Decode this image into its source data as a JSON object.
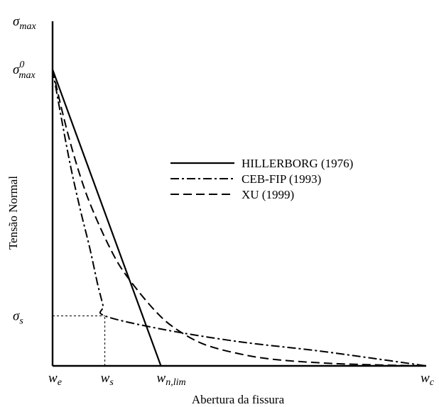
{
  "chart_data": {
    "type": "line",
    "title": "",
    "xlabel": "Abertura da fissura",
    "ylabel": "Tensão Normal",
    "xlim": [
      0,
      100
    ],
    "ylim": [
      0,
      100
    ],
    "grid": false,
    "legend_position": "center-right",
    "y_tick_labels": [
      {
        "value": 100,
        "base": "σ",
        "sub": "max",
        "sup": ""
      },
      {
        "value": 86,
        "base": "σ",
        "sub": "max",
        "sup": "0"
      },
      {
        "value": 14.5,
        "base": "σ",
        "sub": "s",
        "sup": ""
      }
    ],
    "x_tick_labels": [
      {
        "value": 0,
        "base": "w",
        "sub": "e"
      },
      {
        "value": 14,
        "base": "w",
        "sub": "s"
      },
      {
        "value": 29,
        "base": "w",
        "sub": "n,lim"
      },
      {
        "value": 100,
        "base": "w",
        "sub": "c"
      }
    ],
    "reference_lines": [
      {
        "points": [
          [
            0,
            14.5
          ],
          [
            14,
            14.5
          ]
        ],
        "style": "dotted"
      },
      {
        "points": [
          [
            14,
            0
          ],
          [
            14,
            14.5
          ]
        ],
        "style": "dotted"
      }
    ],
    "series": [
      {
        "name": "HILLERBORG (1976)",
        "style": "solid",
        "points": [
          [
            0,
            86
          ],
          [
            29,
            0
          ]
        ]
      },
      {
        "name": "CEB-FIP (1993)",
        "style": "dash-dot",
        "points": [
          [
            0,
            86
          ],
          [
            2.5,
            71
          ],
          [
            5,
            57
          ],
          [
            7.5,
            45
          ],
          [
            10,
            34
          ],
          [
            12,
            24
          ],
          [
            13.5,
            17.5
          ],
          [
            14,
            14.5
          ],
          [
            30,
            10.5
          ],
          [
            50,
            7
          ],
          [
            70,
            4.5
          ],
          [
            85,
            2.3
          ],
          [
            100,
            0
          ]
        ]
      },
      {
        "name": "XU (1999)",
        "style": "dashed",
        "points": [
          [
            0,
            86
          ],
          [
            3,
            72
          ],
          [
            6,
            60
          ],
          [
            9,
            50
          ],
          [
            12,
            42
          ],
          [
            15,
            35
          ],
          [
            18,
            29
          ],
          [
            22,
            23
          ],
          [
            27,
            16.5
          ],
          [
            32,
            11.5
          ],
          [
            40,
            6.5
          ],
          [
            50,
            3.5
          ],
          [
            60,
            1.8
          ],
          [
            75,
            0.7
          ],
          [
            90,
            0.2
          ],
          [
            100,
            0
          ]
        ]
      }
    ]
  }
}
